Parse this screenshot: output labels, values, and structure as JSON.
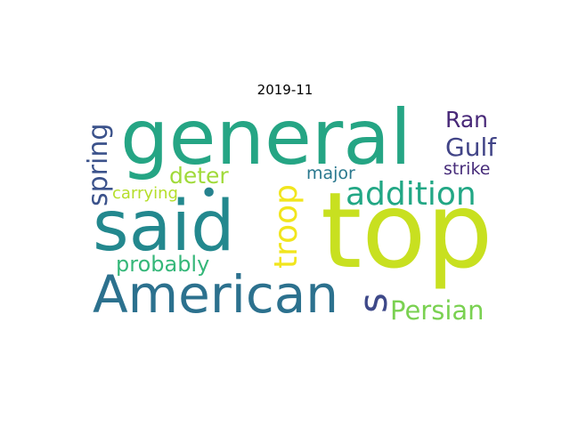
{
  "title": "2019-11",
  "words": [
    {
      "text": "general",
      "color": "#25a584"
    },
    {
      "text": "top",
      "color": "#c8e020"
    },
    {
      "text": "said",
      "color": "#23888e"
    },
    {
      "text": "American",
      "color": "#2c718e"
    },
    {
      "text": "addition",
      "color": "#22a785"
    },
    {
      "text": "troop",
      "color": "#f1e51d"
    },
    {
      "text": "spring",
      "color": "#3b528b"
    },
    {
      "text": "Gulf",
      "color": "#414487"
    },
    {
      "text": "Ran",
      "color": "#482878"
    },
    {
      "text": "deter",
      "color": "#a0da39"
    },
    {
      "text": "probably",
      "color": "#35b779"
    },
    {
      "text": "Persian",
      "color": "#7ad151"
    },
    {
      "text": "s",
      "color": "#3e4989"
    },
    {
      "text": "major",
      "color": "#2a788e"
    },
    {
      "text": "strike",
      "color": "#472c7a"
    },
    {
      "text": "carrying",
      "color": "#b5de2b"
    },
    {
      "text": "•",
      "color": "#26828e"
    }
  ]
}
